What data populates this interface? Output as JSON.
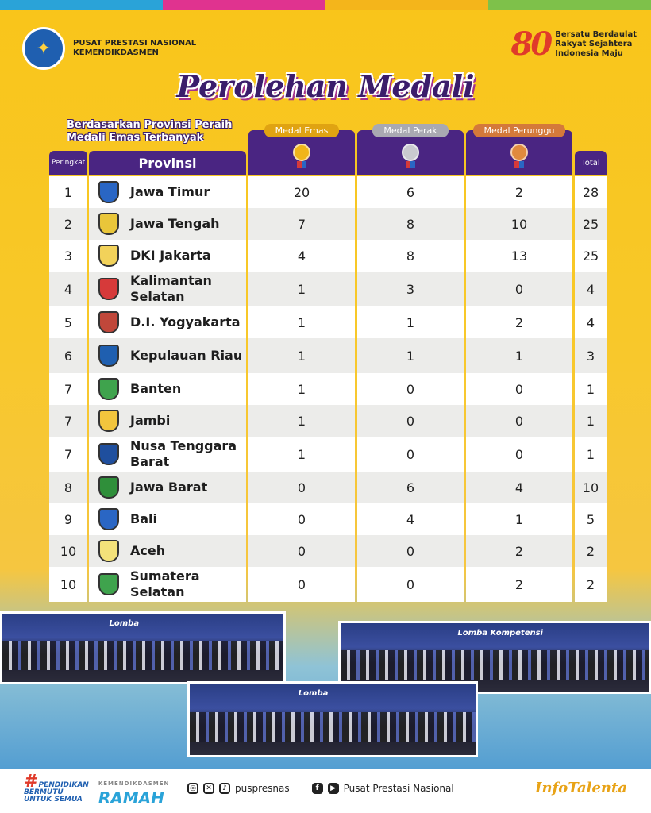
{
  "top_bar_colors": [
    "#2aa3d8",
    "#e0338f",
    "#f4b51b",
    "#7ec14a"
  ],
  "header": {
    "org_line1": "PUSAT PRESTASI NASIONAL",
    "org_line2": "KEMENDIKDASMEN",
    "anniversary_number": "80",
    "tagline_line1": "Bersatu Berdaulat",
    "tagline_line2": "Rakyat Sejahtera",
    "tagline_line3": "Indonesia Maju"
  },
  "title": "Perolehan Medali",
  "subtitle_line1": "Berdasarkan Provinsi Peraih",
  "subtitle_line2": "Medali Emas Terbanyak",
  "columns": {
    "rank": "Peringkat",
    "province": "Provinsi",
    "gold": "Medal Emas",
    "silver": "Medal Perak",
    "bronze": "Medal Perunggu",
    "total": "Total"
  },
  "medal_colors": {
    "gold": "#f0b51a",
    "silver": "#c9c9cf",
    "bronze": "#e08a3e",
    "header": "#4a2582"
  },
  "rows": [
    {
      "rank": "1",
      "province": "Jawa Timur",
      "gold": "20",
      "silver": "6",
      "bronze": "2",
      "total": "28",
      "emblem_color": "#2a66c4"
    },
    {
      "rank": "2",
      "province": "Jawa Tengah",
      "gold": "7",
      "silver": "8",
      "bronze": "10",
      "total": "25",
      "emblem_color": "#e9c63a"
    },
    {
      "rank": "3",
      "province": "DKI Jakarta",
      "gold": "4",
      "silver": "8",
      "bronze": "13",
      "total": "25",
      "emblem_color": "#f2d25a"
    },
    {
      "rank": "4",
      "province": "Kalimantan Selatan",
      "gold": "1",
      "silver": "3",
      "bronze": "0",
      "total": "4",
      "emblem_color": "#d63a3a"
    },
    {
      "rank": "5",
      "province": "D.I. Yogyakarta",
      "gold": "1",
      "silver": "1",
      "bronze": "2",
      "total": "4",
      "emblem_color": "#c0473a"
    },
    {
      "rank": "6",
      "province": "Kepulauan Riau",
      "gold": "1",
      "silver": "1",
      "bronze": "1",
      "total": "3",
      "emblem_color": "#1f5fb0"
    },
    {
      "rank": "7",
      "province": "Banten",
      "gold": "1",
      "silver": "0",
      "bronze": "0",
      "total": "1",
      "emblem_color": "#3fa34d"
    },
    {
      "rank": "7",
      "province": "Jambi",
      "gold": "1",
      "silver": "0",
      "bronze": "0",
      "total": "1",
      "emblem_color": "#f2c53d"
    },
    {
      "rank": "7",
      "province": "Nusa Tenggara Barat",
      "gold": "1",
      "silver": "0",
      "bronze": "0",
      "total": "1",
      "emblem_color": "#1f4f9e"
    },
    {
      "rank": "8",
      "province": "Jawa Barat",
      "gold": "0",
      "silver": "6",
      "bronze": "4",
      "total": "10",
      "emblem_color": "#2f8f3a"
    },
    {
      "rank": "9",
      "province": "Bali",
      "gold": "0",
      "silver": "4",
      "bronze": "1",
      "total": "5",
      "emblem_color": "#2a66c4"
    },
    {
      "rank": "10",
      "province": "Aceh",
      "gold": "0",
      "silver": "0",
      "bronze": "2",
      "total": "2",
      "emblem_color": "#f4e27a"
    },
    {
      "rank": "10",
      "province": "Sumatera Selatan",
      "gold": "0",
      "silver": "0",
      "bronze": "2",
      "total": "2",
      "emblem_color": "#3fa34d"
    }
  ],
  "photos": [
    {
      "banner": "Lomba"
    },
    {
      "banner": "Lomba Kompetensi"
    },
    {
      "banner": "Lomba"
    }
  ],
  "footer": {
    "hashtag_line1": "PENDIDIKAN",
    "hashtag_line2": "BERMUTU",
    "hashtag_line3": "UNTUK SEMUA",
    "ramah_small": "KEMENDIKDASMEN",
    "ramah": "RAMAH",
    "social_handle": "puspresnas",
    "channel_name": "Pusat Prestasi Nasional",
    "brand": "InfoTalenta"
  }
}
